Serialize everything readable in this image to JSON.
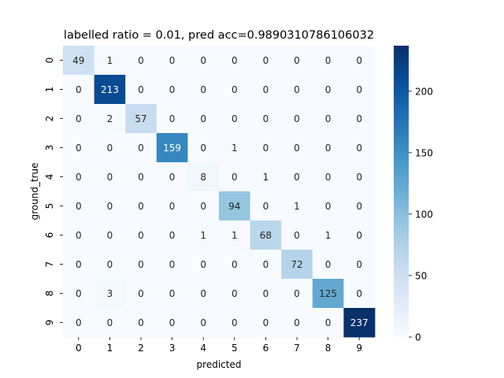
{
  "chart_data": {
    "type": "heatmap",
    "title": "labelled ratio = 0.01, pred acc=0.9890310786106032",
    "xlabel": "predicted",
    "ylabel": "ground_true",
    "x_ticks": [
      "0",
      "1",
      "2",
      "3",
      "4",
      "5",
      "6",
      "7",
      "8",
      "9"
    ],
    "y_ticks": [
      "0",
      "1",
      "2",
      "3",
      "4",
      "5",
      "6",
      "7",
      "8",
      "9"
    ],
    "matrix": [
      [
        49,
        1,
        0,
        0,
        0,
        0,
        0,
        0,
        0,
        0
      ],
      [
        0,
        213,
        0,
        0,
        0,
        0,
        0,
        0,
        0,
        0
      ],
      [
        0,
        2,
        57,
        0,
        0,
        0,
        0,
        0,
        0,
        0
      ],
      [
        0,
        0,
        0,
        159,
        0,
        1,
        0,
        0,
        0,
        0
      ],
      [
        0,
        0,
        0,
        0,
        8,
        0,
        1,
        0,
        0,
        0
      ],
      [
        0,
        0,
        0,
        0,
        0,
        94,
        0,
        1,
        0,
        0
      ],
      [
        0,
        0,
        0,
        0,
        1,
        1,
        68,
        0,
        1,
        0
      ],
      [
        0,
        0,
        0,
        0,
        0,
        0,
        0,
        72,
        0,
        0
      ],
      [
        0,
        3,
        0,
        0,
        0,
        0,
        0,
        0,
        125,
        0
      ],
      [
        0,
        0,
        0,
        0,
        0,
        0,
        0,
        0,
        0,
        237
      ]
    ],
    "colormap": "Blues",
    "vmin": 0,
    "vmax": 237,
    "colorbar_ticks": [
      "0",
      "50",
      "100",
      "150",
      "200"
    ],
    "colorbar_tick_values": [
      0,
      50,
      100,
      150,
      200
    ],
    "grid": false,
    "annotations": true
  }
}
